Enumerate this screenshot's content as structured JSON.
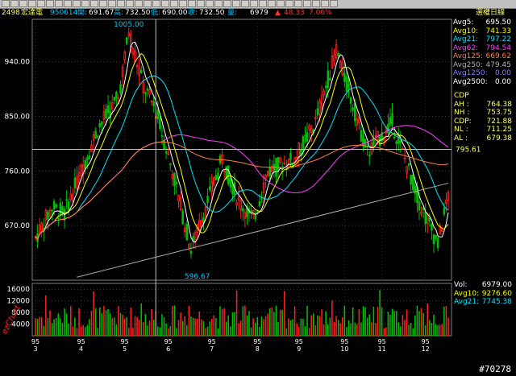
{
  "header": {
    "code": "2498",
    "name": "宏達電",
    "date": "950614",
    "open_label": "開:",
    "open": "691.67",
    "high_label": "高:",
    "high": "732.50",
    "low_label": "低:",
    "low": "690.00",
    "close_label": "收:",
    "close": "732.50",
    "vol_label": "量:",
    "vol": "6979",
    "change_arrow": "▲",
    "change": "48.33",
    "change_pct": "7.06%",
    "right_title": "選權日線"
  },
  "price_axis": {
    "ticks": [
      "940.00",
      "850.00",
      "760.00",
      "670.00"
    ],
    "values": [
      940,
      850,
      760,
      670
    ],
    "max_label": "1005.00",
    "min_label": "596.67",
    "cursor_label": "795.61"
  },
  "volume_axis": {
    "ticks": [
      "16000",
      "12000",
      "8000",
      "4000"
    ],
    "values": [
      16000,
      12000,
      8000,
      4000
    ]
  },
  "x_axis": {
    "years": [
      "95",
      "95",
      "95",
      "95",
      "95",
      "95",
      "95",
      "95",
      "95",
      "95"
    ],
    "months": [
      "3",
      "4",
      "5",
      "6",
      "7",
      "8",
      "9",
      "10",
      "11",
      "12"
    ]
  },
  "ma_panel": [
    {
      "label": "Avg5:",
      "value": "695.50",
      "color": "#ffffff"
    },
    {
      "label": "Avg10:",
      "value": "741.33",
      "color": "#ffff00"
    },
    {
      "label": "Avg21:",
      "value": "797.22",
      "color": "#00e5ff"
    },
    {
      "label": "Avg62:",
      "value": "794.54",
      "color": "#ff40ff"
    },
    {
      "label": "Avg125:",
      "value": "669.62",
      "color": "#ff8040"
    },
    {
      "label": "Avg250:",
      "value": "479.45",
      "color": "#b0b0b0"
    },
    {
      "label": "Avg1250:",
      "value": "0.00",
      "color": "#8080ff"
    },
    {
      "label": "Avg2500:",
      "value": "0.00",
      "color": "#ffffff"
    }
  ],
  "cdp_panel": {
    "title": "CDP",
    "rows": [
      {
        "label": "AH :",
        "value": "764.38"
      },
      {
        "label": "NH :",
        "value": "753.75"
      },
      {
        "label": "CDP:",
        "value": "721.88"
      },
      {
        "label": "NL :",
        "value": "711.25"
      },
      {
        "label": "AL :",
        "value": "679.38"
      }
    ]
  },
  "vol_panel": [
    {
      "label": "Vol:",
      "value": "6979.00",
      "color": "#ffffff"
    },
    {
      "label": "Avg10:",
      "value": "9276.60",
      "color": "#ffff00"
    },
    {
      "label": "Avg21:",
      "value": "7745.38",
      "color": "#00e5ff"
    }
  ],
  "brand": "ezChart",
  "footer_id": "#70278",
  "colors": {
    "up": "#ff2020",
    "down": "#00c000",
    "grid": "#404040",
    "cursor": "#c0c0c0"
  }
}
